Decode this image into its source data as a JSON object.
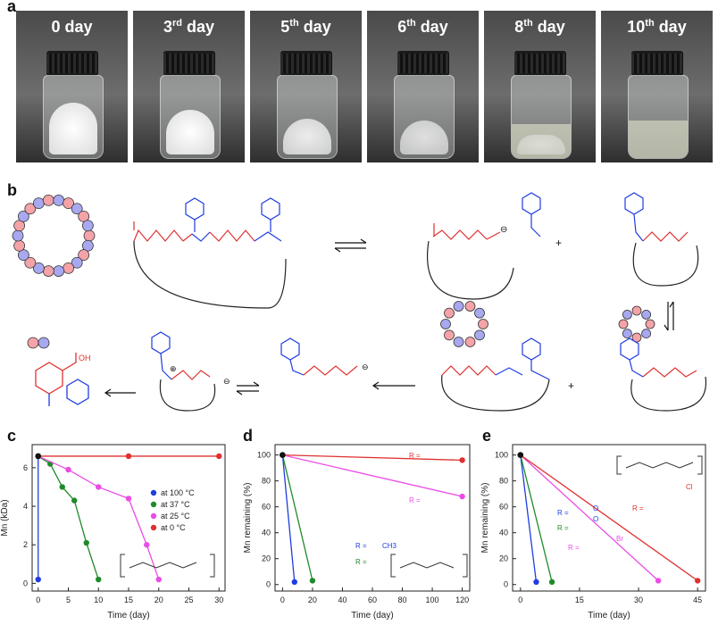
{
  "panels": {
    "a": "a",
    "b": "b",
    "c": "c",
    "d": "d",
    "e": "e"
  },
  "photos": [
    {
      "main": "0 day",
      "sup": "",
      "day": ""
    },
    {
      "main": "3",
      "sup": "rd",
      "day": " day"
    },
    {
      "main": "5",
      "sup": "th",
      "day": " day"
    },
    {
      "main": "6",
      "sup": "th",
      "day": " day"
    },
    {
      "main": "8",
      "sup": "th",
      "day": " day"
    },
    {
      "main": "10",
      "sup": "th",
      "day": " day"
    }
  ],
  "scheme": {
    "plus1": "+",
    "plus2": "+",
    "minus": "⊖",
    "plus_charge": "⊕",
    "oh": "OH",
    "nh": "N"
  },
  "chart_data": [
    {
      "type": "line",
      "id": "c",
      "xlabel": "Time (day)",
      "ylabel": "Mn (kDa)",
      "xlim": [
        -1,
        31
      ],
      "ylim": [
        -0.4,
        7.2
      ],
      "xticks": [
        0,
        5,
        10,
        15,
        20,
        25,
        30
      ],
      "yticks": [
        0,
        2,
        4,
        6
      ],
      "series": [
        {
          "name": "at 100 °C",
          "color": "#1f3de0",
          "x": [
            0,
            0
          ],
          "y": [
            6.6,
            0.2
          ]
        },
        {
          "name": "at 37 °C",
          "color": "#1f8a2a",
          "x": [
            0,
            2,
            4,
            6,
            8,
            10
          ],
          "y": [
            6.6,
            6.2,
            5.0,
            4.3,
            2.1,
            0.2
          ]
        },
        {
          "name": "at 25 °C",
          "color": "#ea4ce6",
          "x": [
            0,
            5,
            10,
            15,
            18,
            20
          ],
          "y": [
            6.6,
            5.9,
            5.0,
            4.4,
            2.0,
            0.2
          ]
        },
        {
          "name": "at 0 °C",
          "color": "#e03030",
          "x": [
            0,
            15,
            30
          ],
          "y": [
            6.6,
            6.6,
            6.6
          ]
        }
      ]
    },
    {
      "type": "line",
      "id": "d",
      "xlabel": "Time (day)",
      "ylabel": "Mn remaining (%)",
      "xlim": [
        -5,
        125
      ],
      "ylim": [
        -5,
        108
      ],
      "xticks": [
        0,
        20,
        40,
        60,
        80,
        100,
        120
      ],
      "yticks": [
        0,
        20,
        40,
        60,
        80,
        100
      ],
      "series": [
        {
          "name": "R = thiophene",
          "color": "#e03030",
          "x": [
            0,
            120
          ],
          "y": [
            100,
            96
          ]
        },
        {
          "name": "R = benzyl",
          "color": "#ea4ce6",
          "x": [
            0,
            120
          ],
          "y": [
            100,
            68
          ]
        },
        {
          "name": "R = CH3",
          "color": "#1f3de0",
          "x": [
            0,
            8
          ],
          "y": [
            100,
            2
          ]
        },
        {
          "name": "R = ethyl",
          "color": "#1f8a2a",
          "x": [
            0,
            20
          ],
          "y": [
            100,
            3
          ]
        }
      ],
      "labels": [
        "R =",
        "R =",
        "R =",
        "R ="
      ],
      "ch3": "CH3"
    },
    {
      "type": "line",
      "id": "e",
      "xlabel": "Time (day)",
      "ylabel": "Mn remaining (%)",
      "xlim": [
        -2,
        47
      ],
      "ylim": [
        -5,
        108
      ],
      "xticks": [
        0,
        15,
        30,
        45
      ],
      "yticks": [
        0,
        20,
        40,
        60,
        80,
        100
      ],
      "series": [
        {
          "name": "R = dimethoxyphenyl",
          "color": "#1f3de0",
          "x": [
            0,
            4
          ],
          "y": [
            100,
            2
          ]
        },
        {
          "name": "R = phenyl",
          "color": "#1f8a2a",
          "x": [
            0,
            8
          ],
          "y": [
            100,
            2
          ]
        },
        {
          "name": "R = bromophenyl",
          "color": "#ea4ce6",
          "x": [
            0,
            35
          ],
          "y": [
            100,
            3
          ]
        },
        {
          "name": "R = chlorophenyl",
          "color": "#e03030",
          "x": [
            0,
            45
          ],
          "y": [
            100,
            3
          ]
        }
      ],
      "labels": [
        "R =",
        "R =",
        "R =",
        "R ="
      ],
      "br": "Br",
      "cl": "Cl",
      "ome1": "O",
      "ome2": "O"
    }
  ]
}
